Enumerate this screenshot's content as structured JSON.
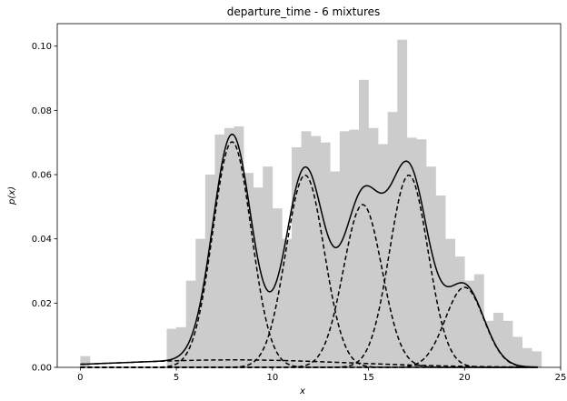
{
  "chart_data": {
    "type": "bar",
    "title": "departure_time - 6 mixtures",
    "xlabel": "x",
    "ylabel": "p(x)",
    "xlim": [
      -1.2,
      25
    ],
    "ylim": [
      0,
      0.107
    ],
    "grid": false,
    "x_ticks": [
      0,
      5,
      10,
      15,
      20,
      25
    ],
    "x_tick_labels": [
      "0",
      "5",
      "10",
      "15",
      "20",
      "25"
    ],
    "y_ticks": [
      0.0,
      0.02,
      0.04,
      0.06,
      0.08,
      0.1
    ],
    "y_tick_labels": [
      "0.00",
      "0.02",
      "0.04",
      "0.06",
      "0.08",
      "0.10"
    ],
    "histogram": {
      "color": "#cccccc",
      "bin_width": 0.5,
      "bins": [
        {
          "x0": 0.0,
          "height": 0.0035
        },
        {
          "x0": 4.5,
          "height": 0.012
        },
        {
          "x0": 5.0,
          "height": 0.0125
        },
        {
          "x0": 5.5,
          "height": 0.027
        },
        {
          "x0": 6.0,
          "height": 0.04
        },
        {
          "x0": 6.5,
          "height": 0.06
        },
        {
          "x0": 7.0,
          "height": 0.0725
        },
        {
          "x0": 7.5,
          "height": 0.0745
        },
        {
          "x0": 8.0,
          "height": 0.075
        },
        {
          "x0": 8.5,
          "height": 0.0605
        },
        {
          "x0": 9.0,
          "height": 0.056
        },
        {
          "x0": 9.5,
          "height": 0.0625
        },
        {
          "x0": 10.0,
          "height": 0.0495
        },
        {
          "x0": 10.5,
          "height": 0.04
        },
        {
          "x0": 11.0,
          "height": 0.0685
        },
        {
          "x0": 11.5,
          "height": 0.0735
        },
        {
          "x0": 12.0,
          "height": 0.072
        },
        {
          "x0": 12.5,
          "height": 0.07
        },
        {
          "x0": 13.0,
          "height": 0.061
        },
        {
          "x0": 13.5,
          "height": 0.0735
        },
        {
          "x0": 14.0,
          "height": 0.074
        },
        {
          "x0": 14.5,
          "height": 0.0895
        },
        {
          "x0": 15.0,
          "height": 0.0745
        },
        {
          "x0": 15.5,
          "height": 0.0695
        },
        {
          "x0": 16.0,
          "height": 0.0795
        },
        {
          "x0": 16.5,
          "height": 0.102
        },
        {
          "x0": 17.0,
          "height": 0.0715
        },
        {
          "x0": 17.5,
          "height": 0.071
        },
        {
          "x0": 18.0,
          "height": 0.0625
        },
        {
          "x0": 18.5,
          "height": 0.0535
        },
        {
          "x0": 19.0,
          "height": 0.04
        },
        {
          "x0": 19.5,
          "height": 0.0345
        },
        {
          "x0": 20.0,
          "height": 0.027
        },
        {
          "x0": 20.5,
          "height": 0.029
        },
        {
          "x0": 21.0,
          "height": 0.0145
        },
        {
          "x0": 21.5,
          "height": 0.017
        },
        {
          "x0": 22.0,
          "height": 0.0145
        },
        {
          "x0": 22.5,
          "height": 0.0095
        },
        {
          "x0": 23.0,
          "height": 0.006
        },
        {
          "x0": 23.5,
          "height": 0.005
        }
      ]
    },
    "mixture_components": [
      {
        "weight": 0.176,
        "mean": 7.9,
        "sd": 1.0
      },
      {
        "weight": 0.15,
        "mean": 11.7,
        "sd": 1.0
      },
      {
        "weight": 0.127,
        "mean": 14.7,
        "sd": 1.0
      },
      {
        "weight": 0.15,
        "mean": 17.1,
        "sd": 1.0
      },
      {
        "weight": 0.0625,
        "mean": 20.0,
        "sd": 1.0
      },
      {
        "weight": 0.035,
        "mean": 8.0,
        "sd": 6.0
      }
    ],
    "component_style": "dashed",
    "total_density_style": "solid",
    "curve_range": [
      0,
      23.8
    ]
  }
}
